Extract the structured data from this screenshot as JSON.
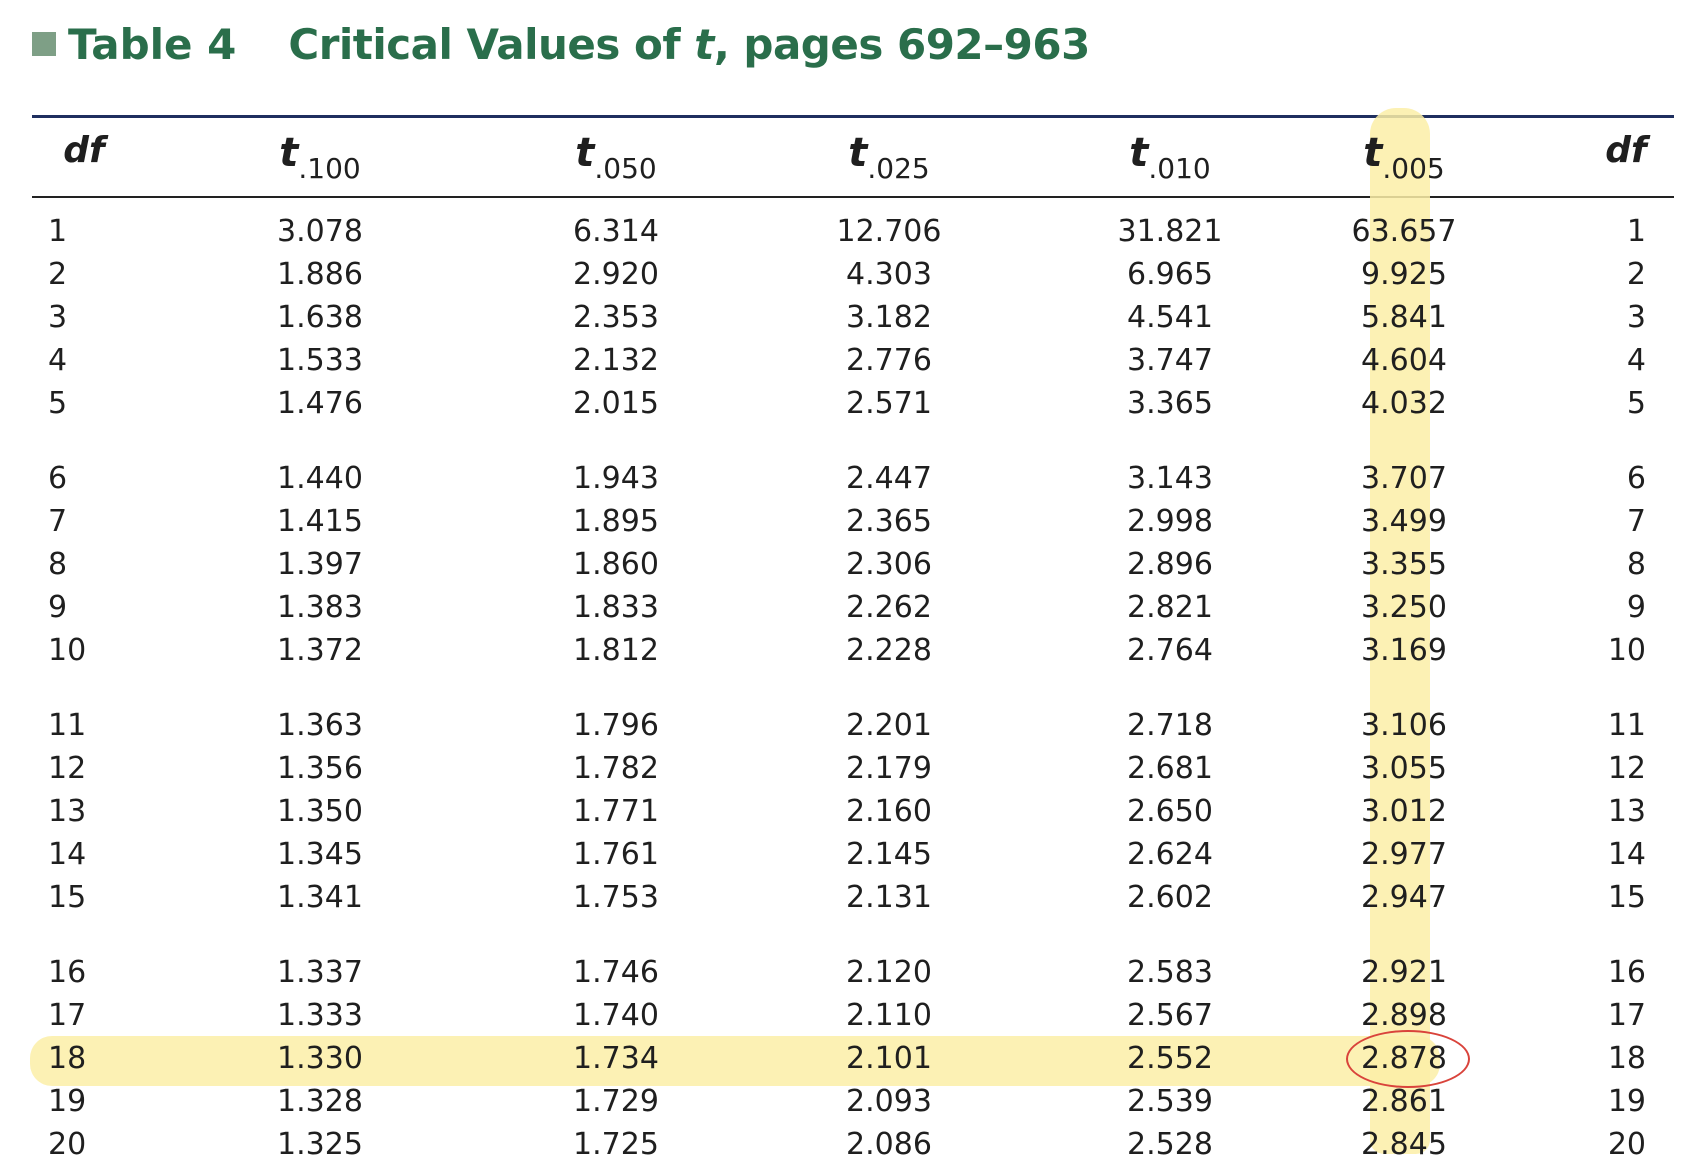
{
  "title": {
    "table_label": "Table 4",
    "text_prefix": "Critical Values of ",
    "text_italic": "t",
    "text_suffix": ", pages 692–963"
  },
  "headers": {
    "df_left": "df",
    "t_symbol": "t",
    "subscripts": [
      ".100",
      ".050",
      ".025",
      ".010",
      ".005"
    ],
    "df_right": "df"
  },
  "rows": [
    {
      "df": "1",
      "values": [
        "3.078",
        "6.314",
        "12.706",
        "31.821",
        "63.657"
      ]
    },
    {
      "df": "2",
      "values": [
        "1.886",
        "2.920",
        "4.303",
        "6.965",
        "9.925"
      ]
    },
    {
      "df": "3",
      "values": [
        "1.638",
        "2.353",
        "3.182",
        "4.541",
        "5.841"
      ]
    },
    {
      "df": "4",
      "values": [
        "1.533",
        "2.132",
        "2.776",
        "3.747",
        "4.604"
      ]
    },
    {
      "df": "5",
      "values": [
        "1.476",
        "2.015",
        "2.571",
        "3.365",
        "4.032"
      ]
    },
    {
      "df": "6",
      "values": [
        "1.440",
        "1.943",
        "2.447",
        "3.143",
        "3.707"
      ]
    },
    {
      "df": "7",
      "values": [
        "1.415",
        "1.895",
        "2.365",
        "2.998",
        "3.499"
      ]
    },
    {
      "df": "8",
      "values": [
        "1.397",
        "1.860",
        "2.306",
        "2.896",
        "3.355"
      ]
    },
    {
      "df": "9",
      "values": [
        "1.383",
        "1.833",
        "2.262",
        "2.821",
        "3.250"
      ]
    },
    {
      "df": "10",
      "values": [
        "1.372",
        "1.812",
        "2.228",
        "2.764",
        "3.169"
      ]
    },
    {
      "df": "11",
      "values": [
        "1.363",
        "1.796",
        "2.201",
        "2.718",
        "3.106"
      ]
    },
    {
      "df": "12",
      "values": [
        "1.356",
        "1.782",
        "2.179",
        "2.681",
        "3.055"
      ]
    },
    {
      "df": "13",
      "values": [
        "1.350",
        "1.771",
        "2.160",
        "2.650",
        "3.012"
      ]
    },
    {
      "df": "14",
      "values": [
        "1.345",
        "1.761",
        "2.145",
        "2.624",
        "2.977"
      ]
    },
    {
      "df": "15",
      "values": [
        "1.341",
        "1.753",
        "2.131",
        "2.602",
        "2.947"
      ]
    },
    {
      "df": "16",
      "values": [
        "1.337",
        "1.746",
        "2.120",
        "2.583",
        "2.921"
      ]
    },
    {
      "df": "17",
      "values": [
        "1.333",
        "1.740",
        "2.110",
        "2.567",
        "2.898"
      ]
    },
    {
      "df": "18",
      "values": [
        "1.330",
        "1.734",
        "2.101",
        "2.552",
        "2.878"
      ]
    },
    {
      "df": "19",
      "values": [
        "1.328",
        "1.729",
        "2.093",
        "2.539",
        "2.861"
      ]
    },
    {
      "df": "20",
      "values": [
        "1.325",
        "1.725",
        "2.086",
        "2.528",
        "2.845"
      ]
    }
  ],
  "annotations": {
    "highlight_color": "#fbeea7",
    "circle_color": "#d9433b",
    "highlighted_column_subscript": ".005",
    "highlighted_row_df": "18",
    "circled_value": "2.878"
  },
  "colors": {
    "title_green": "#2a6e4b",
    "title_square": "#7e9f86",
    "top_rule": "#1f2f5f"
  }
}
